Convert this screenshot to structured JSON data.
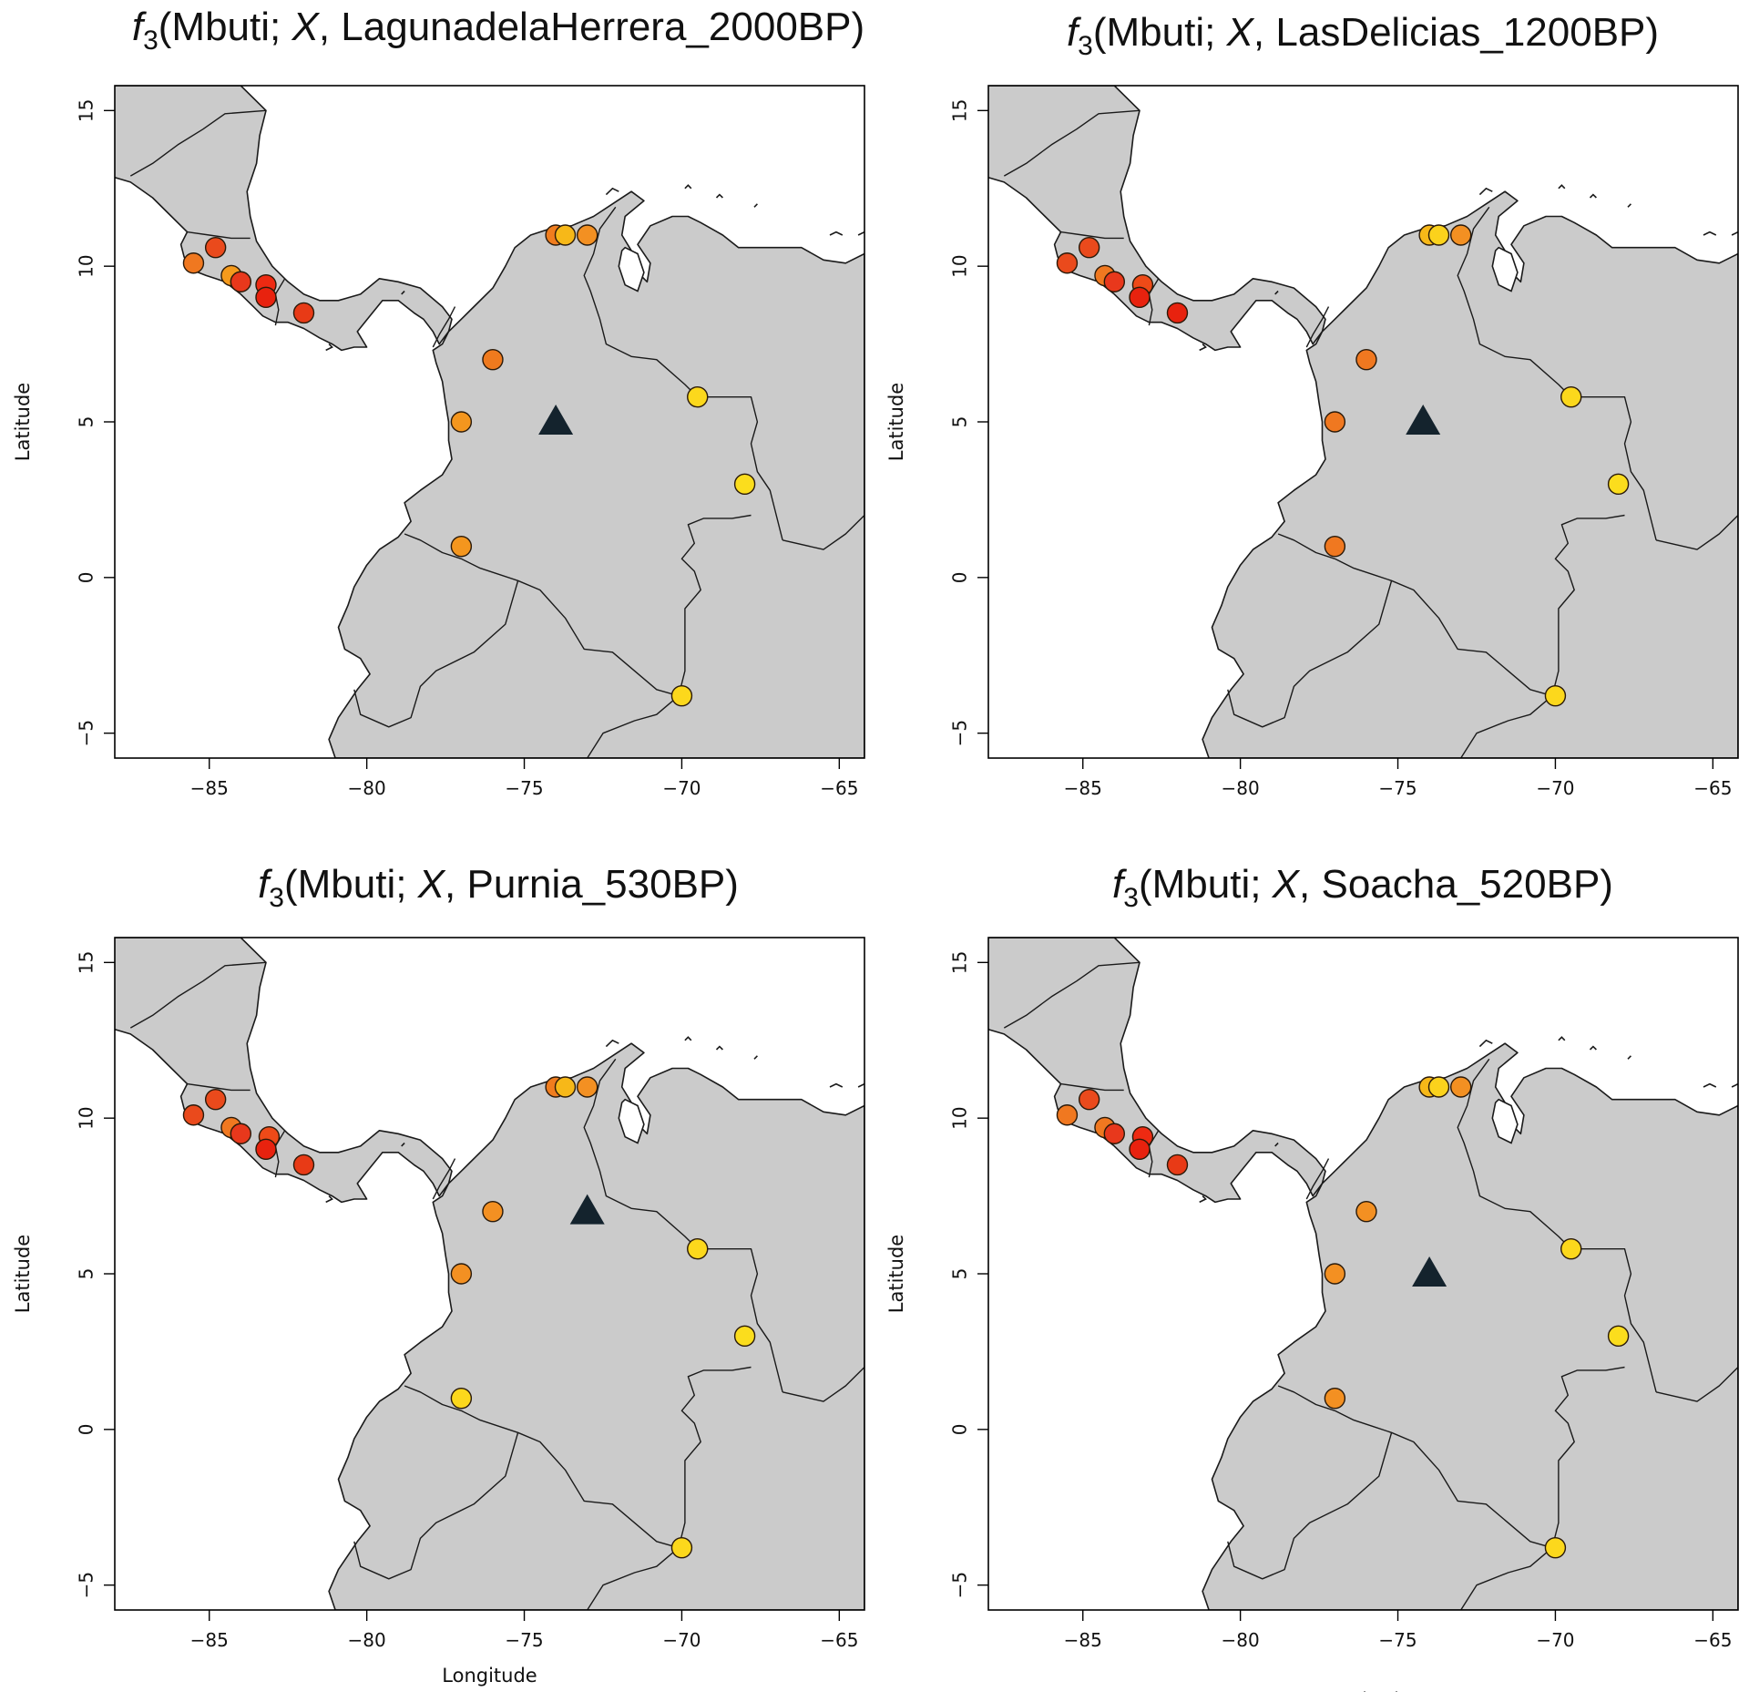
{
  "figure": {
    "panels": [
      {
        "title": {
          "prefix": "f",
          "sub": "3",
          "body_a": "(Mbuti; ",
          "var": "X",
          "body_b": ", LagunadelaHerrera_2000BP)"
        },
        "xlabel": "",
        "ylabel": "Latitude",
        "target": {
          "lon": -74.0,
          "lat": 5.0
        },
        "samples": [
          {
            "lon": -85.5,
            "lat": 10.1,
            "color": "#f07820"
          },
          {
            "lon": -84.8,
            "lat": 10.6,
            "color": "#ea4a1c"
          },
          {
            "lon": -84.3,
            "lat": 9.7,
            "color": "#f59a1c"
          },
          {
            "lon": -84.0,
            "lat": 9.5,
            "color": "#e8381c"
          },
          {
            "lon": -83.2,
            "lat": 9.4,
            "color": "#ee2a12"
          },
          {
            "lon": -83.2,
            "lat": 9.0,
            "color": "#e8220e"
          },
          {
            "lon": -82.0,
            "lat": 8.5,
            "color": "#e83a16"
          },
          {
            "lon": -76.0,
            "lat": 7.0,
            "color": "#ef7a1e"
          },
          {
            "lon": -77.0,
            "lat": 5.0,
            "color": "#f4961e"
          },
          {
            "lon": -77.0,
            "lat": 1.0,
            "color": "#f4961e"
          },
          {
            "lon": -74.0,
            "lat": 11.0,
            "color": "#f07d1e"
          },
          {
            "lon": -73.7,
            "lat": 11.0,
            "color": "#f7b818"
          },
          {
            "lon": -73.0,
            "lat": 11.0,
            "color": "#f39022"
          },
          {
            "lon": -69.5,
            "lat": 5.8,
            "color": "#fcd81c"
          },
          {
            "lon": -68.0,
            "lat": 3.0,
            "color": "#fbdd1d"
          },
          {
            "lon": -70.0,
            "lat": -3.8,
            "color": "#fcd81c"
          }
        ]
      },
      {
        "title": {
          "prefix": "f",
          "sub": "3",
          "body_a": "(Mbuti; ",
          "var": "X",
          "body_b": ", LasDelicias_1200BP)"
        },
        "xlabel": "",
        "ylabel": "Latitude",
        "target": {
          "lon": -74.2,
          "lat": 5.0
        },
        "samples": [
          {
            "lon": -85.5,
            "lat": 10.1,
            "color": "#ea4a1c"
          },
          {
            "lon": -84.8,
            "lat": 10.6,
            "color": "#ea4a1c"
          },
          {
            "lon": -84.3,
            "lat": 9.7,
            "color": "#f07820"
          },
          {
            "lon": -84.0,
            "lat": 9.5,
            "color": "#e8381c"
          },
          {
            "lon": -83.1,
            "lat": 9.4,
            "color": "#ee4a18"
          },
          {
            "lon": -83.2,
            "lat": 9.0,
            "color": "#e8220e"
          },
          {
            "lon": -82.0,
            "lat": 8.5,
            "color": "#e8220e"
          },
          {
            "lon": -76.0,
            "lat": 7.0,
            "color": "#f07820"
          },
          {
            "lon": -77.0,
            "lat": 5.0,
            "color": "#f07820"
          },
          {
            "lon": -77.0,
            "lat": 1.0,
            "color": "#f07820"
          },
          {
            "lon": -74.0,
            "lat": 11.0,
            "color": "#f7b818"
          },
          {
            "lon": -73.7,
            "lat": 11.0,
            "color": "#fbd21c"
          },
          {
            "lon": -73.0,
            "lat": 11.0,
            "color": "#f39022"
          },
          {
            "lon": -69.5,
            "lat": 5.8,
            "color": "#fcd81c"
          },
          {
            "lon": -68.0,
            "lat": 3.0,
            "color": "#fbdd1d"
          },
          {
            "lon": -70.0,
            "lat": -3.8,
            "color": "#fcd81c"
          }
        ]
      },
      {
        "title": {
          "prefix": "f",
          "sub": "3",
          "body_a": "(Mbuti;  ",
          "var": "X",
          "body_b": ", Purnia_530BP)"
        },
        "xlabel": "",
        "ylabel": "Latitude",
        "target": {
          "lon": -73.0,
          "lat": 7.0
        },
        "samples": [
          {
            "lon": -85.5,
            "lat": 10.1,
            "color": "#ea4a1c"
          },
          {
            "lon": -84.8,
            "lat": 10.6,
            "color": "#ea4a1c"
          },
          {
            "lon": -84.3,
            "lat": 9.7,
            "color": "#f07820"
          },
          {
            "lon": -84.0,
            "lat": 9.5,
            "color": "#e8381c"
          },
          {
            "lon": -83.1,
            "lat": 9.4,
            "color": "#ee4a18"
          },
          {
            "lon": -83.2,
            "lat": 9.0,
            "color": "#e8220e"
          },
          {
            "lon": -82.0,
            "lat": 8.5,
            "color": "#e83a16"
          },
          {
            "lon": -76.0,
            "lat": 7.0,
            "color": "#f39022"
          },
          {
            "lon": -77.0,
            "lat": 5.0,
            "color": "#f39022"
          },
          {
            "lon": -77.0,
            "lat": 1.0,
            "color": "#fcd81c"
          },
          {
            "lon": -74.0,
            "lat": 11.0,
            "color": "#f07d1e"
          },
          {
            "lon": -73.7,
            "lat": 11.0,
            "color": "#f7b818"
          },
          {
            "lon": -73.0,
            "lat": 11.0,
            "color": "#f39022"
          },
          {
            "lon": -69.5,
            "lat": 5.8,
            "color": "#fcd81c"
          },
          {
            "lon": -68.0,
            "lat": 3.0,
            "color": "#fbdd1d"
          },
          {
            "lon": -70.0,
            "lat": -3.8,
            "color": "#fcd81c"
          }
        ]
      },
      {
        "title": {
          "prefix": "f",
          "sub": "3",
          "body_a": "(Mbuti; ",
          "var": "X",
          "body_b": ", Soacha_520BP)"
        },
        "xlabel": "Longitude",
        "ylabel": "Latitude",
        "target": {
          "lon": -74.0,
          "lat": 5.0
        },
        "samples": [
          {
            "lon": -85.5,
            "lat": 10.1,
            "color": "#f07820"
          },
          {
            "lon": -84.8,
            "lat": 10.6,
            "color": "#ea4a1c"
          },
          {
            "lon": -84.3,
            "lat": 9.7,
            "color": "#f07820"
          },
          {
            "lon": -84.0,
            "lat": 9.5,
            "color": "#e8381c"
          },
          {
            "lon": -83.1,
            "lat": 9.4,
            "color": "#ee2a12"
          },
          {
            "lon": -83.2,
            "lat": 9.0,
            "color": "#e8220e"
          },
          {
            "lon": -82.0,
            "lat": 8.5,
            "color": "#e83a16"
          },
          {
            "lon": -76.0,
            "lat": 7.0,
            "color": "#f39022"
          },
          {
            "lon": -77.0,
            "lat": 5.0,
            "color": "#f39022"
          },
          {
            "lon": -77.0,
            "lat": 1.0,
            "color": "#f39022"
          },
          {
            "lon": -74.0,
            "lat": 11.0,
            "color": "#f7b818"
          },
          {
            "lon": -73.7,
            "lat": 11.0,
            "color": "#fbd21c"
          },
          {
            "lon": -73.0,
            "lat": 11.0,
            "color": "#f39022"
          },
          {
            "lon": -69.5,
            "lat": 5.8,
            "color": "#fcd81c"
          },
          {
            "lon": -68.0,
            "lat": 3.0,
            "color": "#fbdd1d"
          },
          {
            "lon": -70.0,
            "lat": -3.8,
            "color": "#fcd81c"
          }
        ]
      }
    ],
    "bottom_left_xlabel": "Longitude",
    "xlim": [
      -88,
      -64.2
    ],
    "ylim": [
      -5.8,
      15.8
    ],
    "xticks": [
      -85,
      -80,
      -75,
      -70,
      -65
    ],
    "yticks": [
      -5,
      0,
      5,
      10,
      15
    ],
    "xtick_labels": [
      "−85",
      "−80",
      "−75",
      "−70",
      "−65"
    ],
    "ytick_labels": [
      "−5",
      "0",
      "5",
      "10",
      "15"
    ],
    "colors": {
      "land": "#cbcbcb",
      "border": "#1a1a1a",
      "target": "#14232d",
      "point_stroke": "#2a1a0a",
      "sea": "#ffffff"
    },
    "marker": "triangle-icon"
  }
}
